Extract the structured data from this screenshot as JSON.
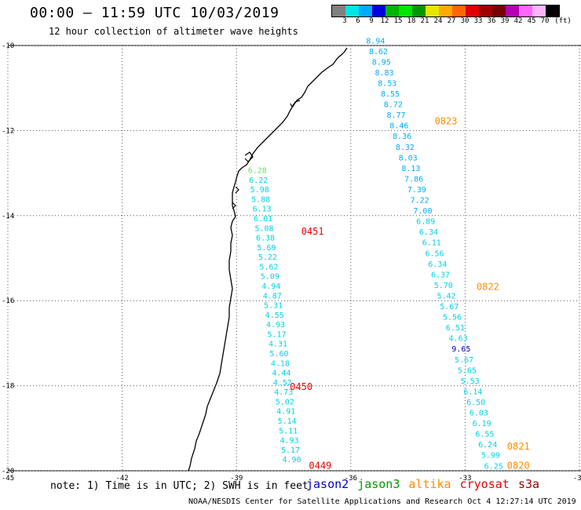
{
  "title": "00:00 – 11:59 UTC 10/03/2019",
  "subtitle": "12 hour collection of altimeter wave heights",
  "colorbar": {
    "colors": [
      "#808080",
      "#00e6e6",
      "#00aaff",
      "#0000dd",
      "#00b400",
      "#00e600",
      "#009600",
      "#e6e600",
      "#ffaa00",
      "#ff6600",
      "#dd0000",
      "#a00000",
      "#780000",
      "#b400b4",
      "#ff66ff",
      "#ffb4ff",
      "#000000"
    ],
    "labels": [
      "3",
      "6",
      "9",
      "12",
      "15",
      "18",
      "21",
      "24",
      "27",
      "30",
      "33",
      "36",
      "39",
      "42",
      "45",
      "70"
    ],
    "unit": "(ft)"
  },
  "map": {
    "lat_labels": [
      "-10",
      "-12",
      "-14",
      "-16",
      "-18",
      "-20"
    ],
    "lon_labels": [
      "-45",
      "-42",
      "-39",
      "-36",
      "-33",
      "-30"
    ],
    "lat_range": [
      -20,
      -10
    ],
    "lon_range": [
      -45,
      -30
    ]
  },
  "chart_data": {
    "type": "scatter",
    "title": "00:00 – 11:59 UTC 10/03/2019",
    "xlabel": "",
    "ylabel": "",
    "xlim": [
      -45,
      -30
    ],
    "ylim": [
      -20,
      -10
    ],
    "series": [
      {
        "name": "track-west",
        "lon_start": -38.7,
        "lat_start": -13.0,
        "lon_end": -37.8,
        "lat_end": -19.8,
        "values": [
          "6.28",
          "6.22",
          "5.98",
          "5.88",
          "6.13",
          "6.01",
          "5.08",
          "6.38",
          "5.69",
          "5.22",
          "5.62",
          "5.09",
          "4.94",
          "4.87",
          "5.31",
          "4.55",
          "4.93",
          "5.17",
          "4.31",
          "5.60",
          "4.18",
          "4.44",
          "4.52",
          "4.73",
          "5.02",
          "4.91",
          "5.14",
          "5.11",
          "4.93",
          "5.17",
          "4.90"
        ],
        "colors": [
          "#66dd66",
          "#00d2e6",
          "#00d2e6",
          "#00d2e6",
          "#00d2e6",
          "#00d2e6",
          "#00d2e6",
          "#00d2e6",
          "#00d2e6",
          "#00d2e6",
          "#00d2e6",
          "#00d2e6",
          "#00d2e6",
          "#00d2e6",
          "#00d2e6",
          "#00d2e6",
          "#00d2e6",
          "#00d2e6",
          "#00d2e6",
          "#00d2e6",
          "#00d2e6",
          "#00d2e6",
          "#00d2e6",
          "#00d2e6",
          "#00d2e6",
          "#00d2e6",
          "#00d2e6",
          "#00d2e6",
          "#00d2e6",
          "#00d2e6",
          "#00d2e6"
        ]
      },
      {
        "name": "track-east",
        "lon_start": -35.6,
        "lat_start": -9.95,
        "lon_end": -32.5,
        "lat_end": -19.95,
        "values": [
          "8.94",
          "8.62",
          "8.95",
          "8.83",
          "8.53",
          "8.55",
          "8.72",
          "8.77",
          "8.46",
          "8.36",
          "8.32",
          "8.03",
          "8.13",
          "7.86",
          "7.39",
          "7.22",
          "7.00",
          "6.89",
          "6.34",
          "6.11",
          "6.56",
          "6.34",
          "6.37",
          "5.70",
          "5.42",
          "5.67",
          "5.56",
          "6.51",
          "4.63",
          "9.65",
          "5.67",
          "5.65",
          "5.53",
          "6.14",
          "6.50",
          "6.03",
          "6.19",
          "6.55",
          "6.24",
          "5.99",
          "6.25"
        ],
        "colors": [
          "#00aaff",
          "#00aaff",
          "#00aaff",
          "#00aaff",
          "#00aaff",
          "#00aaff",
          "#00aaff",
          "#00aaff",
          "#00aaff",
          "#00aaff",
          "#00aaff",
          "#00aaff",
          "#00aaff",
          "#00aaff",
          "#00aaff",
          "#00aaff",
          "#00aaff",
          "#00d2e6",
          "#00d2e6",
          "#00d2e6",
          "#00d2e6",
          "#00d2e6",
          "#00d2e6",
          "#00d2e6",
          "#00d2e6",
          "#00d2e6",
          "#00d2e6",
          "#00d2e6",
          "#00d2e6",
          "#0000aa",
          "#00d2e6",
          "#00d2e6",
          "#00d2e6",
          "#00d2e6",
          "#00d2e6",
          "#00d2e6",
          "#00d2e6",
          "#00d2e6",
          "#00d2e6",
          "#00d2e6",
          "#00d2e6"
        ]
      }
    ],
    "time_labels": [
      {
        "text": "0823",
        "lon": -33.8,
        "lat": -11.85,
        "color": "#ff8c00"
      },
      {
        "text": "0822",
        "lon": -32.7,
        "lat": -15.75,
        "color": "#ff8c00"
      },
      {
        "text": "0821",
        "lon": -31.9,
        "lat": -19.5,
        "color": "#ff8c00"
      },
      {
        "text": "0820",
        "lon": -31.9,
        "lat": -19.95,
        "color": "#ff8c00"
      },
      {
        "text": "0451",
        "lon": -37.3,
        "lat": -14.45,
        "color": "#ee0000"
      },
      {
        "text": "0450",
        "lon": -37.6,
        "lat": -18.1,
        "color": "#ee0000"
      },
      {
        "text": "0449",
        "lon": -37.1,
        "lat": -19.95,
        "color": "#ee0000"
      }
    ]
  },
  "note": "note: 1) Time is in UTC; 2) SWH is in feet",
  "legend": [
    {
      "name": "jason2",
      "color": "#0000cc"
    },
    {
      "name": "jason3",
      "color": "#009900"
    },
    {
      "name": "altika",
      "color": "#ff8c00"
    },
    {
      "name": "cryosat",
      "color": "#ee0000"
    },
    {
      "name": "s3a",
      "color": "#990000"
    }
  ],
  "footer": "NOAA/NESDIS Center for Satellite Applications and Research    Oct  4 12:27:14 UTC 2019"
}
